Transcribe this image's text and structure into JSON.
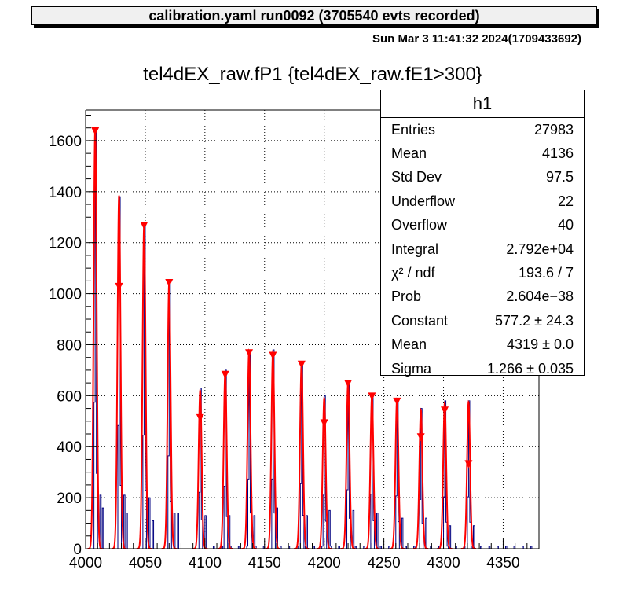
{
  "header": {
    "title": "calibration.yaml  run0092 (3705540 evts recorded)",
    "datestamp": "Sun Mar  3 11:41:32 2024(1709433692)"
  },
  "stats": {
    "name": "h1",
    "rows": [
      {
        "label": "Entries",
        "value": "27983"
      },
      {
        "label": "Mean",
        "value": "4136"
      },
      {
        "label": "Std Dev",
        "value": "97.5"
      },
      {
        "label": "Underflow",
        "value": "22"
      },
      {
        "label": "Overflow",
        "value": "40"
      },
      {
        "label": "Integral",
        "value": "2.792e+04"
      },
      {
        "label": "χ² / ndf",
        "value": "193.6 / 7"
      },
      {
        "label": "Prob",
        "value": "2.604e−38"
      },
      {
        "label": "Constant",
        "value": "577.2 ± 24.3"
      },
      {
        "label": "Mean",
        "value": "4319 ± 0.0"
      },
      {
        "label": "Sigma",
        "value": "1.266 ± 0.035"
      }
    ]
  },
  "colors": {
    "histogram": "#000080",
    "fit": "#ff0000",
    "markers": "#ff0000",
    "grid": "#000000"
  },
  "chart_data": {
    "type": "bar",
    "title": "tel4dEX_raw.fP1 {tel4dEX_raw.fE1>300}",
    "xlabel": "",
    "ylabel": "",
    "xlim": [
      4000,
      4380
    ],
    "ylim": [
      0,
      1720
    ],
    "xticks": [
      4000,
      4050,
      4100,
      4150,
      4200,
      4250,
      4300,
      4350
    ],
    "yticks": [
      0,
      200,
      400,
      600,
      800,
      1000,
      1200,
      1400,
      1600
    ],
    "grid": true,
    "legend": "top-right",
    "peaks": [
      {
        "x": 4008,
        "height": 1640,
        "fit_height": 1640,
        "marker_y": 1640
      },
      {
        "x": 4028,
        "height": 1380,
        "fit_height": 1385,
        "marker_y": 1030
      },
      {
        "x": 4049,
        "height": 1270,
        "fit_height": 1270,
        "marker_y": 1270
      },
      {
        "x": 4070,
        "height": 1040,
        "fit_height": 1045,
        "marker_y": 1045
      },
      {
        "x": 4096,
        "height": 630,
        "fit_height": 620,
        "marker_y": 515
      },
      {
        "x": 4117,
        "height": 700,
        "fit_height": 690,
        "marker_y": 685
      },
      {
        "x": 4137,
        "height": 780,
        "fit_height": 775,
        "marker_y": 770
      },
      {
        "x": 4157,
        "height": 780,
        "fit_height": 770,
        "marker_y": 760
      },
      {
        "x": 4181,
        "height": 730,
        "fit_height": 725,
        "marker_y": 725
      },
      {
        "x": 4200,
        "height": 600,
        "fit_height": 590,
        "marker_y": 495
      },
      {
        "x": 4220,
        "height": 660,
        "fit_height": 650,
        "marker_y": 650
      },
      {
        "x": 4240,
        "height": 610,
        "fit_height": 600,
        "marker_y": 600
      },
      {
        "x": 4261,
        "height": 590,
        "fit_height": 585,
        "marker_y": 580
      },
      {
        "x": 4281,
        "height": 550,
        "fit_height": 545,
        "marker_y": 440
      },
      {
        "x": 4301,
        "height": 580,
        "fit_height": 570,
        "marker_y": 545
      },
      {
        "x": 4321,
        "height": 580,
        "fit_height": 575,
        "marker_y": 335
      }
    ],
    "satellites": [
      {
        "x": 4012,
        "height": 210
      },
      {
        "x": 4014,
        "height": 160
      },
      {
        "x": 4032,
        "height": 210
      },
      {
        "x": 4034,
        "height": 140
      },
      {
        "x": 4053,
        "height": 200
      },
      {
        "x": 4056,
        "height": 110
      },
      {
        "x": 4074,
        "height": 140
      },
      {
        "x": 4077,
        "height": 140
      },
      {
        "x": 4100,
        "height": 130
      },
      {
        "x": 4120,
        "height": 130
      },
      {
        "x": 4141,
        "height": 130
      },
      {
        "x": 4160,
        "height": 160
      },
      {
        "x": 4185,
        "height": 130
      },
      {
        "x": 4204,
        "height": 150
      },
      {
        "x": 4224,
        "height": 150
      },
      {
        "x": 4244,
        "height": 140
      },
      {
        "x": 4265,
        "height": 120
      },
      {
        "x": 4285,
        "height": 120
      },
      {
        "x": 4305,
        "height": 90
      },
      {
        "x": 4325,
        "height": 90
      }
    ],
    "sigma": 1.266
  }
}
